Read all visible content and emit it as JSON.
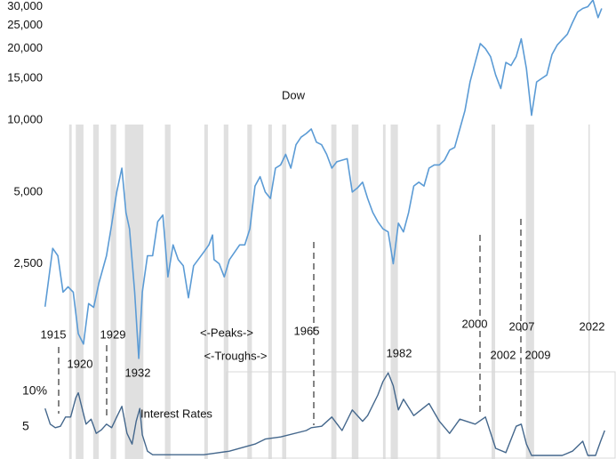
{
  "chart_data": [
    {
      "type": "line",
      "log_scale": true,
      "grid": false,
      "xlim": [
        1905.2,
        2025.5
      ],
      "ylim": [
        950,
        32000
      ],
      "yticks": [
        {
          "value": 2500,
          "label": "2,500"
        },
        {
          "value": 5000,
          "label": "5,000"
        },
        {
          "value": 10000,
          "label": "10,000"
        },
        {
          "value": 15000,
          "label": "15,000"
        },
        {
          "value": 20000,
          "label": "20,000"
        },
        {
          "value": 25000,
          "label": "25,000"
        },
        {
          "value": 30000,
          "label": "30,000"
        }
      ],
      "shaded_periods": [
        [
          1918.7,
          1919.2
        ],
        [
          1920.0,
          1921.5
        ],
        [
          1923.4,
          1924.5
        ],
        [
          1926.8,
          1927.9
        ],
        [
          1929.6,
          1933.2
        ],
        [
          1937.4,
          1938.5
        ],
        [
          1945.1,
          1945.8
        ],
        [
          1948.9,
          1949.8
        ],
        [
          1953.5,
          1954.4
        ],
        [
          1957.6,
          1958.3
        ],
        [
          1960.3,
          1961.1
        ],
        [
          1969.9,
          1970.9
        ],
        [
          1973.9,
          1975.2
        ],
        [
          1980.0,
          1980.5
        ],
        [
          1981.5,
          1982.9
        ],
        [
          1990.5,
          1991.2
        ],
        [
          2001.2,
          2001.9
        ],
        [
          2007.9,
          2009.5
        ],
        [
          2020.1,
          2020.4
        ]
      ],
      "annotations": [
        "1915",
        "1920",
        "1929",
        "1932",
        "<-Peaks->",
        "<-Troughs->",
        "1965",
        "1982",
        "2000",
        "2002",
        "2007",
        "2009",
        "2022"
      ],
      "x": [
        1914,
        1915.5,
        1916.5,
        1917.5,
        1918.5,
        1919.5,
        1920.5,
        1921.5,
        1922.5,
        1923.5,
        1924.5,
        1926,
        1927,
        1928,
        1929,
        1929.8,
        1930.5,
        1931.5,
        1932.3,
        1933,
        1934,
        1935,
        1936,
        1937,
        1938,
        1939,
        1940,
        1941,
        1942,
        1943,
        1945,
        1946,
        1946.7,
        1947,
        1948,
        1949,
        1950,
        1952,
        1953,
        1954,
        1955,
        1956,
        1957,
        1958,
        1959,
        1960,
        1961,
        1962,
        1963,
        1964,
        1965,
        1966,
        1967,
        1968,
        1969,
        1970,
        1971,
        1973,
        1974,
        1975,
        1976,
        1977,
        1978,
        1979,
        1980,
        1981,
        1982,
        1983,
        1984,
        1985,
        1986,
        1987,
        1988,
        1989,
        1990,
        1991,
        1992,
        1993,
        1994,
        1995,
        1996,
        1997,
        1998,
        1999,
        2000,
        2001,
        2002,
        2003,
        2004,
        2005,
        2006,
        2007,
        2008,
        2009,
        2010,
        2011,
        2012,
        2013,
        2014,
        2015,
        2016,
        2017,
        2018,
        2019,
        2020,
        2021,
        2022,
        2022.7
      ],
      "series": [
        {
          "name": "Dow",
          "color": "#5b9bd5",
          "values": [
            1650,
            2900,
            2700,
            1900,
            2000,
            1900,
            1270,
            1150,
            1700,
            1640,
            2070,
            2700,
            3650,
            5000,
            6300,
            4100,
            3500,
            1900,
            1000,
            1900,
            2700,
            2700,
            3750,
            4000,
            2200,
            3000,
            2600,
            2450,
            1800,
            2450,
            2800,
            3000,
            3300,
            2600,
            2500,
            2200,
            2600,
            3000,
            3000,
            3500,
            5300,
            5800,
            5000,
            4700,
            6300,
            6500,
            7200,
            6300,
            7900,
            8500,
            8800,
            9200,
            8100,
            7900,
            7200,
            6300,
            6700,
            6900,
            5000,
            5200,
            5500,
            4700,
            4100,
            3750,
            3500,
            3400,
            2500,
            3700,
            3400,
            4100,
            5300,
            5500,
            5300,
            6300,
            6500,
            6500,
            6800,
            7500,
            7700,
            9200,
            11000,
            14500,
            17500,
            21000,
            20000,
            18500,
            15500,
            13600,
            17500,
            17000,
            18500,
            22000,
            16500,
            10500,
            14500,
            15000,
            15500,
            18900,
            20700,
            21800,
            23000,
            25700,
            28500,
            29500,
            30000,
            32000,
            27000,
            29500
          ]
        }
      ]
    },
    {
      "type": "line",
      "log_scale": false,
      "grid": false,
      "xlim": [
        1905.2,
        2025.5
      ],
      "ylim": [
        0.5,
        13
      ],
      "yticks": [
        {
          "value": 5,
          "label": "5"
        },
        {
          "value": 10,
          "label": "10%"
        }
      ],
      "x": [
        1914,
        1915,
        1916,
        1917,
        1918,
        1919,
        1920,
        1920.5,
        1921,
        1922,
        1923,
        1924,
        1925,
        1926,
        1927,
        1928,
        1929,
        1930,
        1931,
        1931.8,
        1932.5,
        1933,
        1934,
        1935,
        1940,
        1945,
        1950,
        1955,
        1957,
        1960,
        1965,
        1966,
        1968,
        1970,
        1972,
        1974,
        1976,
        1977,
        1979,
        1980,
        1981,
        1982,
        1983,
        1984,
        1986,
        1989,
        1991,
        1993,
        1995,
        1998,
        2000,
        2002,
        2004,
        2006,
        2007,
        2008,
        2009,
        2015,
        2017,
        2019,
        2020,
        2021.5,
        2022.5,
        2023.3
      ],
      "series": [
        {
          "name": "Interest Rates",
          "color": "#44678c",
          "values": [
            7.6,
            5.4,
            4.9,
            5.1,
            6.4,
            6.4,
            9.1,
            9.8,
            8.3,
            5.4,
            6.1,
            4.1,
            4.6,
            5.4,
            4.9,
            6.4,
            7.9,
            4.1,
            2.6,
            5.8,
            7.6,
            3.9,
            1.6,
            1.1,
            1.1,
            1.1,
            1.6,
            2.6,
            3.3,
            3.6,
            4.5,
            4.9,
            5.1,
            6.4,
            4.5,
            7.4,
            5.8,
            6.6,
            9.5,
            11.4,
            12.6,
            10.8,
            7.4,
            8.9,
            6.6,
            8.3,
            5.8,
            4.1,
            6.1,
            5.4,
            6.4,
            2.0,
            1.4,
            5.1,
            5.4,
            2.6,
            1.0,
            1.0,
            1.6,
            3.0,
            1.0,
            1.0,
            3.0,
            4.5
          ]
        }
      ]
    }
  ]
}
